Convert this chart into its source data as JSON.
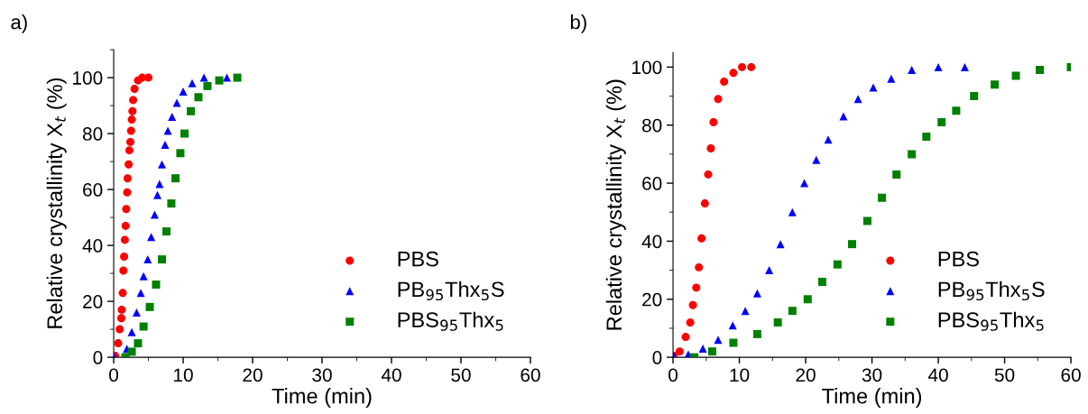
{
  "chart_data": [
    {
      "type": "scatter",
      "xlabel": "Time (min)",
      "ylabel": "Relative crystallinity X$_{t}$ (%)",
      "annotations": [
        "a)"
      ],
      "xlim": [
        0,
        60
      ],
      "ylim": [
        0,
        110
      ],
      "xticks": [
        0,
        10,
        20,
        30,
        40,
        50,
        60
      ],
      "yticks": [
        0,
        20,
        40,
        60,
        80,
        100
      ],
      "legend": "bottom right",
      "grid": false,
      "series": [
        {
          "name": "PBS",
          "color": "#ff0000",
          "marker": "circle",
          "x": [
            0.2,
            0.65,
            0.87,
            1.1,
            1.16,
            1.3,
            1.4,
            1.5,
            1.6,
            1.72,
            1.8,
            1.94,
            2.0,
            2.15,
            2.26,
            2.4,
            2.5,
            2.6,
            2.7,
            2.8,
            3.0,
            3.5,
            4.1,
            5.0
          ],
          "values": [
            0.5,
            5,
            10,
            14,
            17,
            23,
            31,
            36,
            42,
            47,
            53,
            59,
            64,
            69,
            74,
            77,
            81,
            85,
            88,
            92,
            96,
            99,
            100,
            100
          ]
        },
        {
          "name": "PB$_{95}$Thx$_{5}$S",
          "color": "#0000ff",
          "marker": "triangle",
          "x": [
            0,
            1.3,
            1.9,
            2.6,
            3.3,
            3.9,
            4.3,
            4.9,
            5.4,
            5.9,
            6.3,
            6.6,
            6.95,
            7.4,
            7.8,
            8.4,
            9.1,
            10,
            11.3,
            13,
            16.3
          ],
          "values": [
            0.5,
            null,
            3,
            9,
            16,
            23,
            29,
            35,
            43,
            51,
            58,
            62,
            69,
            76,
            81,
            86,
            91,
            95,
            98,
            100,
            100
          ]
        },
        {
          "name": "PBS$_{95}$Thx$_{5}$",
          "color": "#008000",
          "marker": "square",
          "x": [
            1.7,
            2.6,
            3.5,
            4.3,
            5.2,
            6.1,
            6.95,
            7.6,
            8.3,
            8.9,
            9.6,
            10.2,
            11.1,
            12.2,
            13.5,
            15.2,
            17.8
          ],
          "values": [
            0,
            2,
            5,
            11,
            18,
            26,
            35,
            45,
            55,
            64,
            73,
            80,
            88,
            93,
            97,
            99,
            100
          ]
        }
      ]
    },
    {
      "type": "scatter",
      "xlabel": "Time (min)",
      "ylabel": "Relative crystallinity X$_{t}$ (%)",
      "annotations": [
        "b)"
      ],
      "xlim": [
        0,
        60
      ],
      "ylim": [
        0,
        105
      ],
      "xticks": [
        0,
        10,
        20,
        30,
        40,
        50,
        60
      ],
      "yticks": [
        0,
        20,
        40,
        60,
        80,
        100
      ],
      "legend": "bottom right",
      "grid": false,
      "series": [
        {
          "name": "PBS",
          "color": "#ff0000",
          "marker": "circle",
          "x": [
            0.1,
            1,
            1.9,
            2.6,
            3,
            3.5,
            3.9,
            4.3,
            4.8,
            5.3,
            5.7,
            6.1,
            6.8,
            7.7,
            9.1,
            10.4,
            11.8
          ],
          "values": [
            0.5,
            2,
            7,
            12,
            18,
            24,
            31,
            41,
            53,
            63,
            72,
            81,
            89,
            95,
            98,
            100,
            100
          ]
        },
        {
          "name": "PB$_{95}$Thx$_{5}$S",
          "color": "#0000ff",
          "marker": "triangle",
          "x": [
            0.1,
            2.3,
            4.5,
            6.8,
            9,
            10.9,
            12.7,
            14.5,
            16.2,
            18,
            19.8,
            21.6,
            23.4,
            25.7,
            27.9,
            30.2,
            32.9,
            36,
            40,
            44
          ],
          "values": [
            0.5,
            1,
            3,
            6,
            11,
            16,
            22,
            30,
            39,
            50,
            60,
            68,
            75,
            83,
            89,
            93,
            96,
            99,
            100,
            100
          ]
        },
        {
          "name": "PBS$_{95}$Thx$_{5}$",
          "color": "#008000",
          "marker": "square",
          "x": [
            3.2,
            5.9,
            9.1,
            12.7,
            15.8,
            18,
            20.3,
            22.5,
            24.8,
            27,
            29.3,
            31.5,
            33.7,
            36,
            38.2,
            40.5,
            42.7,
            45.4,
            48.5,
            51.7,
            55.3,
            60
          ],
          "values": [
            0,
            2,
            5,
            8,
            12,
            16,
            20,
            26,
            32,
            39,
            47,
            55,
            63,
            70,
            76,
            81,
            85,
            90,
            94,
            97,
            99,
            100
          ]
        }
      ]
    }
  ]
}
